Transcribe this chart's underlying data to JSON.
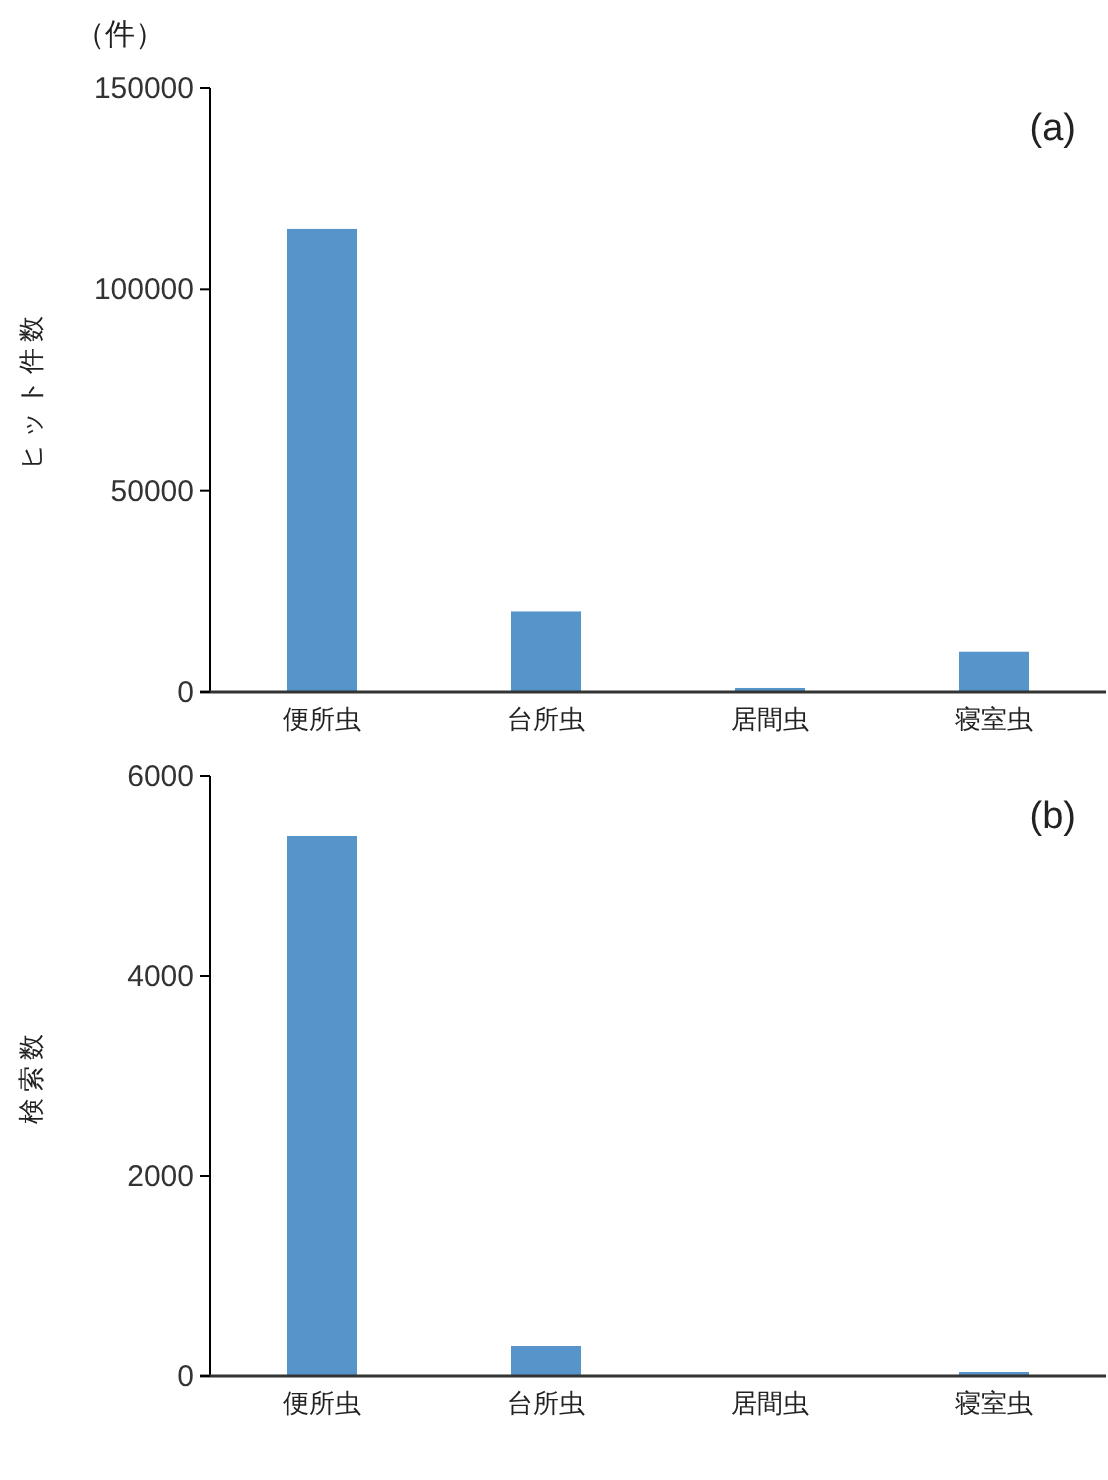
{
  "chart_data": [
    {
      "type": "bar",
      "categories": [
        "便所虫",
        "台所虫",
        "居間虫",
        "寝室虫"
      ],
      "values": [
        115000,
        20000,
        1000,
        10000
      ],
      "color": "#5694c9",
      "ylim": [
        0,
        150000
      ],
      "yticks": [
        0,
        50000,
        100000,
        150000
      ],
      "ylabel": "ヒット件数",
      "annotations": [
        "（件）",
        "(a)"
      ],
      "grid": false
    },
    {
      "type": "bar",
      "categories": [
        "便所虫",
        "台所虫",
        "居間虫",
        "寝室虫"
      ],
      "values": [
        5400,
        300,
        0,
        40
      ],
      "color": "#5694c9",
      "ylim": [
        0,
        6000
      ],
      "yticks": [
        0,
        2000,
        4000,
        6000
      ],
      "ylabel": "検索数",
      "annotations": [
        "(b)"
      ],
      "grid": false
    }
  ]
}
